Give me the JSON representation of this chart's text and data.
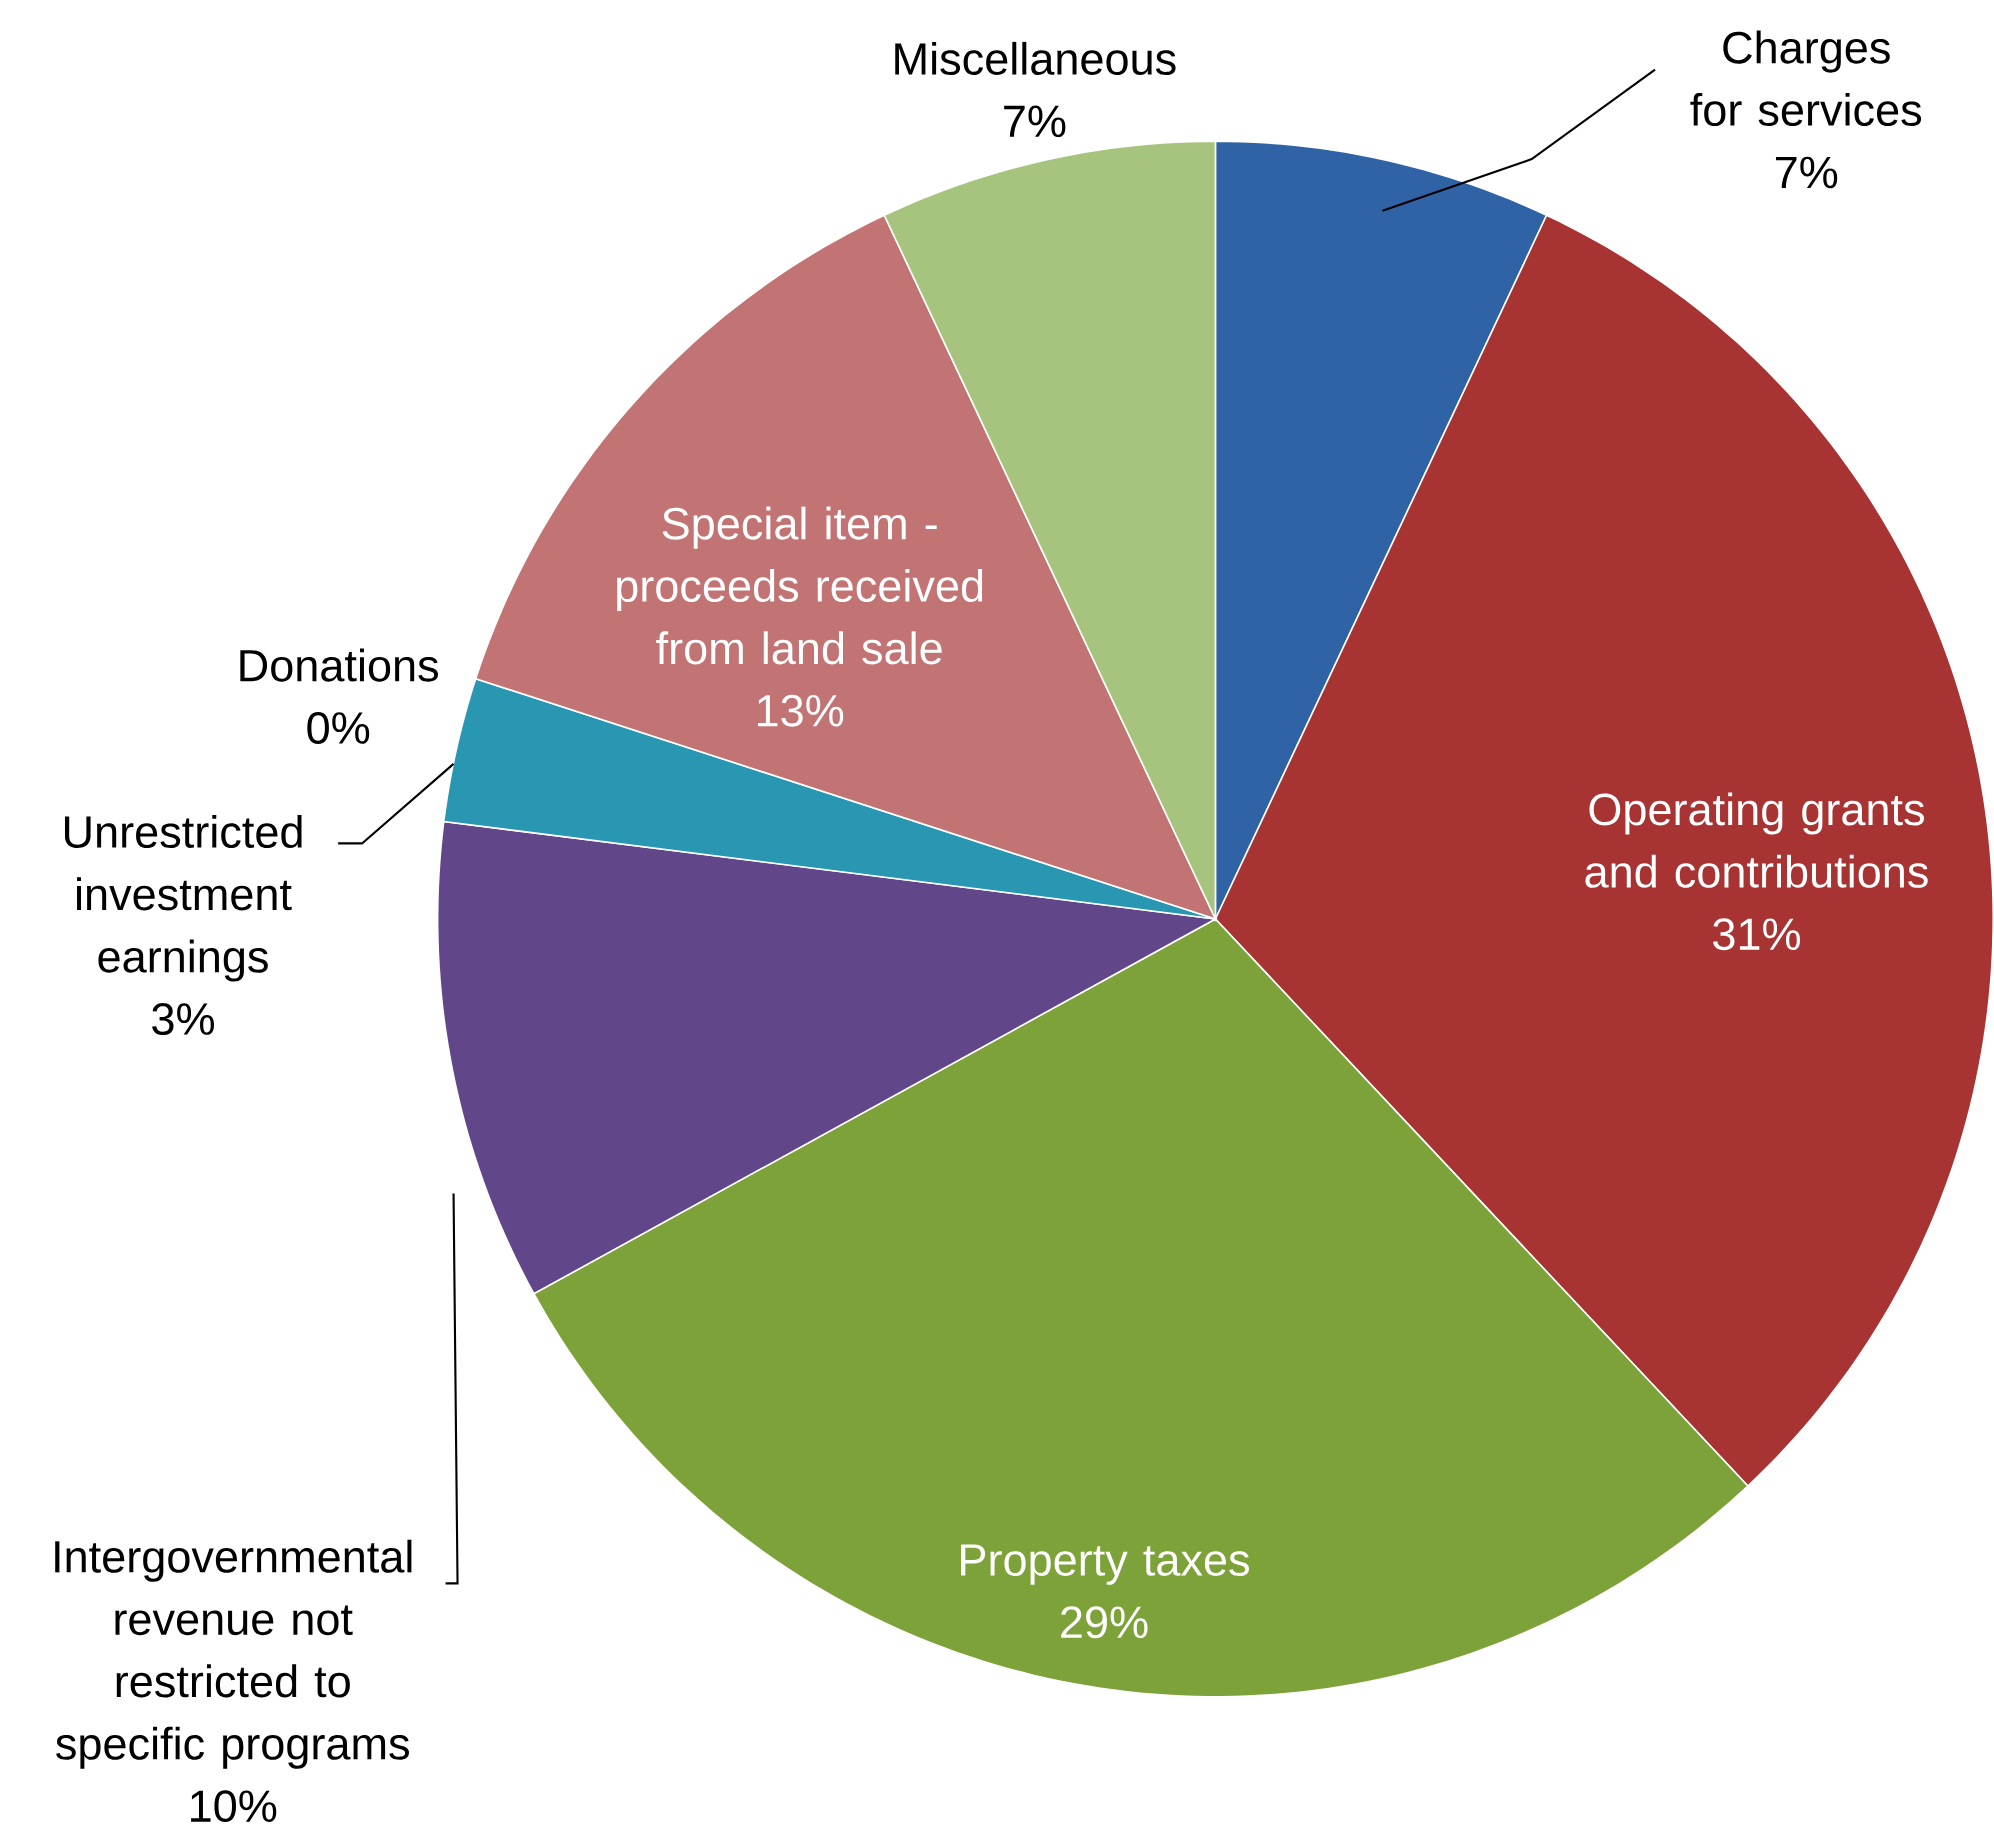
{
  "chart_data": {
    "type": "pie",
    "categories": [
      "Charges for services",
      "Operating grants and contributions",
      "Property taxes",
      "Intergovernmental revenue not restricted to specific programs",
      "Unrestricted investment earnings",
      "Donations",
      "Special item - proceeds received from land sale",
      "Miscellaneous"
    ],
    "values": [
      7,
      31,
      29,
      10,
      3,
      0,
      13,
      7
    ],
    "value_labels": [
      "7%",
      "31%",
      "29%",
      "10%",
      "3%",
      "0%",
      "13%",
      "7%"
    ],
    "colors": [
      "#2f63a6",
      "#a83333",
      "#7ea23a",
      "#61478a",
      "#2a97b2",
      "#e8893a",
      "#c27474",
      "#a7c47e"
    ]
  }
}
